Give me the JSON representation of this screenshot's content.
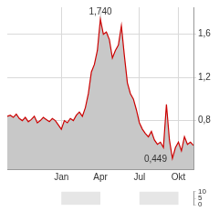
{
  "chart_data": [
    {
      "type": "line",
      "categories": [
        null,
        null,
        null,
        null,
        null,
        null,
        null,
        null,
        null,
        null,
        null,
        null,
        null,
        null,
        null,
        null,
        null,
        null,
        "Jan",
        null,
        null,
        null,
        null,
        null,
        null,
        null,
        null,
        null,
        null,
        null,
        null,
        "Apr",
        null,
        null,
        null,
        null,
        null,
        null,
        null,
        null,
        null,
        null,
        null,
        null,
        "Jul",
        null,
        null,
        null,
        null,
        null,
        null,
        null,
        null,
        null,
        null,
        null,
        null,
        "Okt",
        null,
        null,
        null,
        null,
        null
      ],
      "values": [
        0.84,
        0.85,
        0.83,
        0.86,
        0.82,
        0.8,
        0.83,
        0.79,
        0.81,
        0.84,
        0.78,
        0.8,
        0.83,
        0.81,
        0.79,
        0.82,
        0.8,
        0.76,
        0.72,
        0.8,
        0.78,
        0.82,
        0.8,
        0.85,
        0.88,
        0.84,
        0.92,
        1.05,
        1.25,
        1.32,
        1.45,
        1.74,
        1.6,
        1.62,
        1.55,
        1.38,
        1.45,
        1.5,
        1.68,
        1.4,
        1.15,
        1.05,
        1.0,
        0.9,
        0.78,
        0.72,
        0.68,
        0.65,
        0.7,
        0.62,
        0.58,
        0.6,
        0.55,
        0.95,
        0.62,
        0.449,
        0.55,
        0.6,
        0.52,
        0.65,
        0.58,
        0.6,
        0.57
      ],
      "color": "#cc0000",
      "ylim": [
        0.35,
        1.85
      ],
      "yticks": [
        {
          "value": 0.8,
          "label": "0,8"
        },
        {
          "value": 1.2,
          "label": "1,2"
        },
        {
          "value": 1.6,
          "label": "1,6"
        }
      ],
      "grid": true,
      "annotations": [
        {
          "label": "1,740",
          "value": 1.74
        },
        {
          "label": "0,449",
          "value": 0.449
        }
      ]
    },
    {
      "type": "bar",
      "categories": [
        null,
        null,
        null,
        null,
        null,
        null,
        null,
        null,
        null,
        null,
        null,
        null,
        null,
        null,
        null,
        null,
        null,
        null,
        "Jan",
        null,
        null,
        null,
        null,
        null,
        null,
        null,
        null,
        null,
        null,
        null,
        null,
        "Apr",
        null,
        null,
        null,
        null,
        null,
        null,
        null,
        null,
        null,
        null,
        null,
        null,
        "Jul",
        null,
        null,
        null,
        null,
        null,
        null,
        null,
        null,
        null,
        null,
        null,
        null,
        "Okt",
        null,
        null,
        null,
        null,
        null
      ],
      "values": [
        null,
        null,
        null,
        null,
        null,
        null,
        null,
        null,
        null,
        null,
        null,
        null,
        null,
        null,
        null,
        null,
        null,
        null,
        null,
        null,
        null,
        null,
        null,
        null,
        null,
        null,
        null,
        null,
        null,
        null,
        null,
        null,
        null,
        null,
        null,
        null,
        null,
        null,
        null,
        null,
        null,
        null,
        null,
        null,
        null,
        null,
        null,
        null,
        null,
        null,
        null,
        null,
        null,
        null,
        null,
        null,
        null,
        null,
        null,
        null,
        null,
        null,
        null
      ],
      "ylim": [
        0,
        10
      ],
      "yticks": [
        0,
        5,
        10
      ],
      "grid": false,
      "tick_labels": "y"
    }
  ]
}
